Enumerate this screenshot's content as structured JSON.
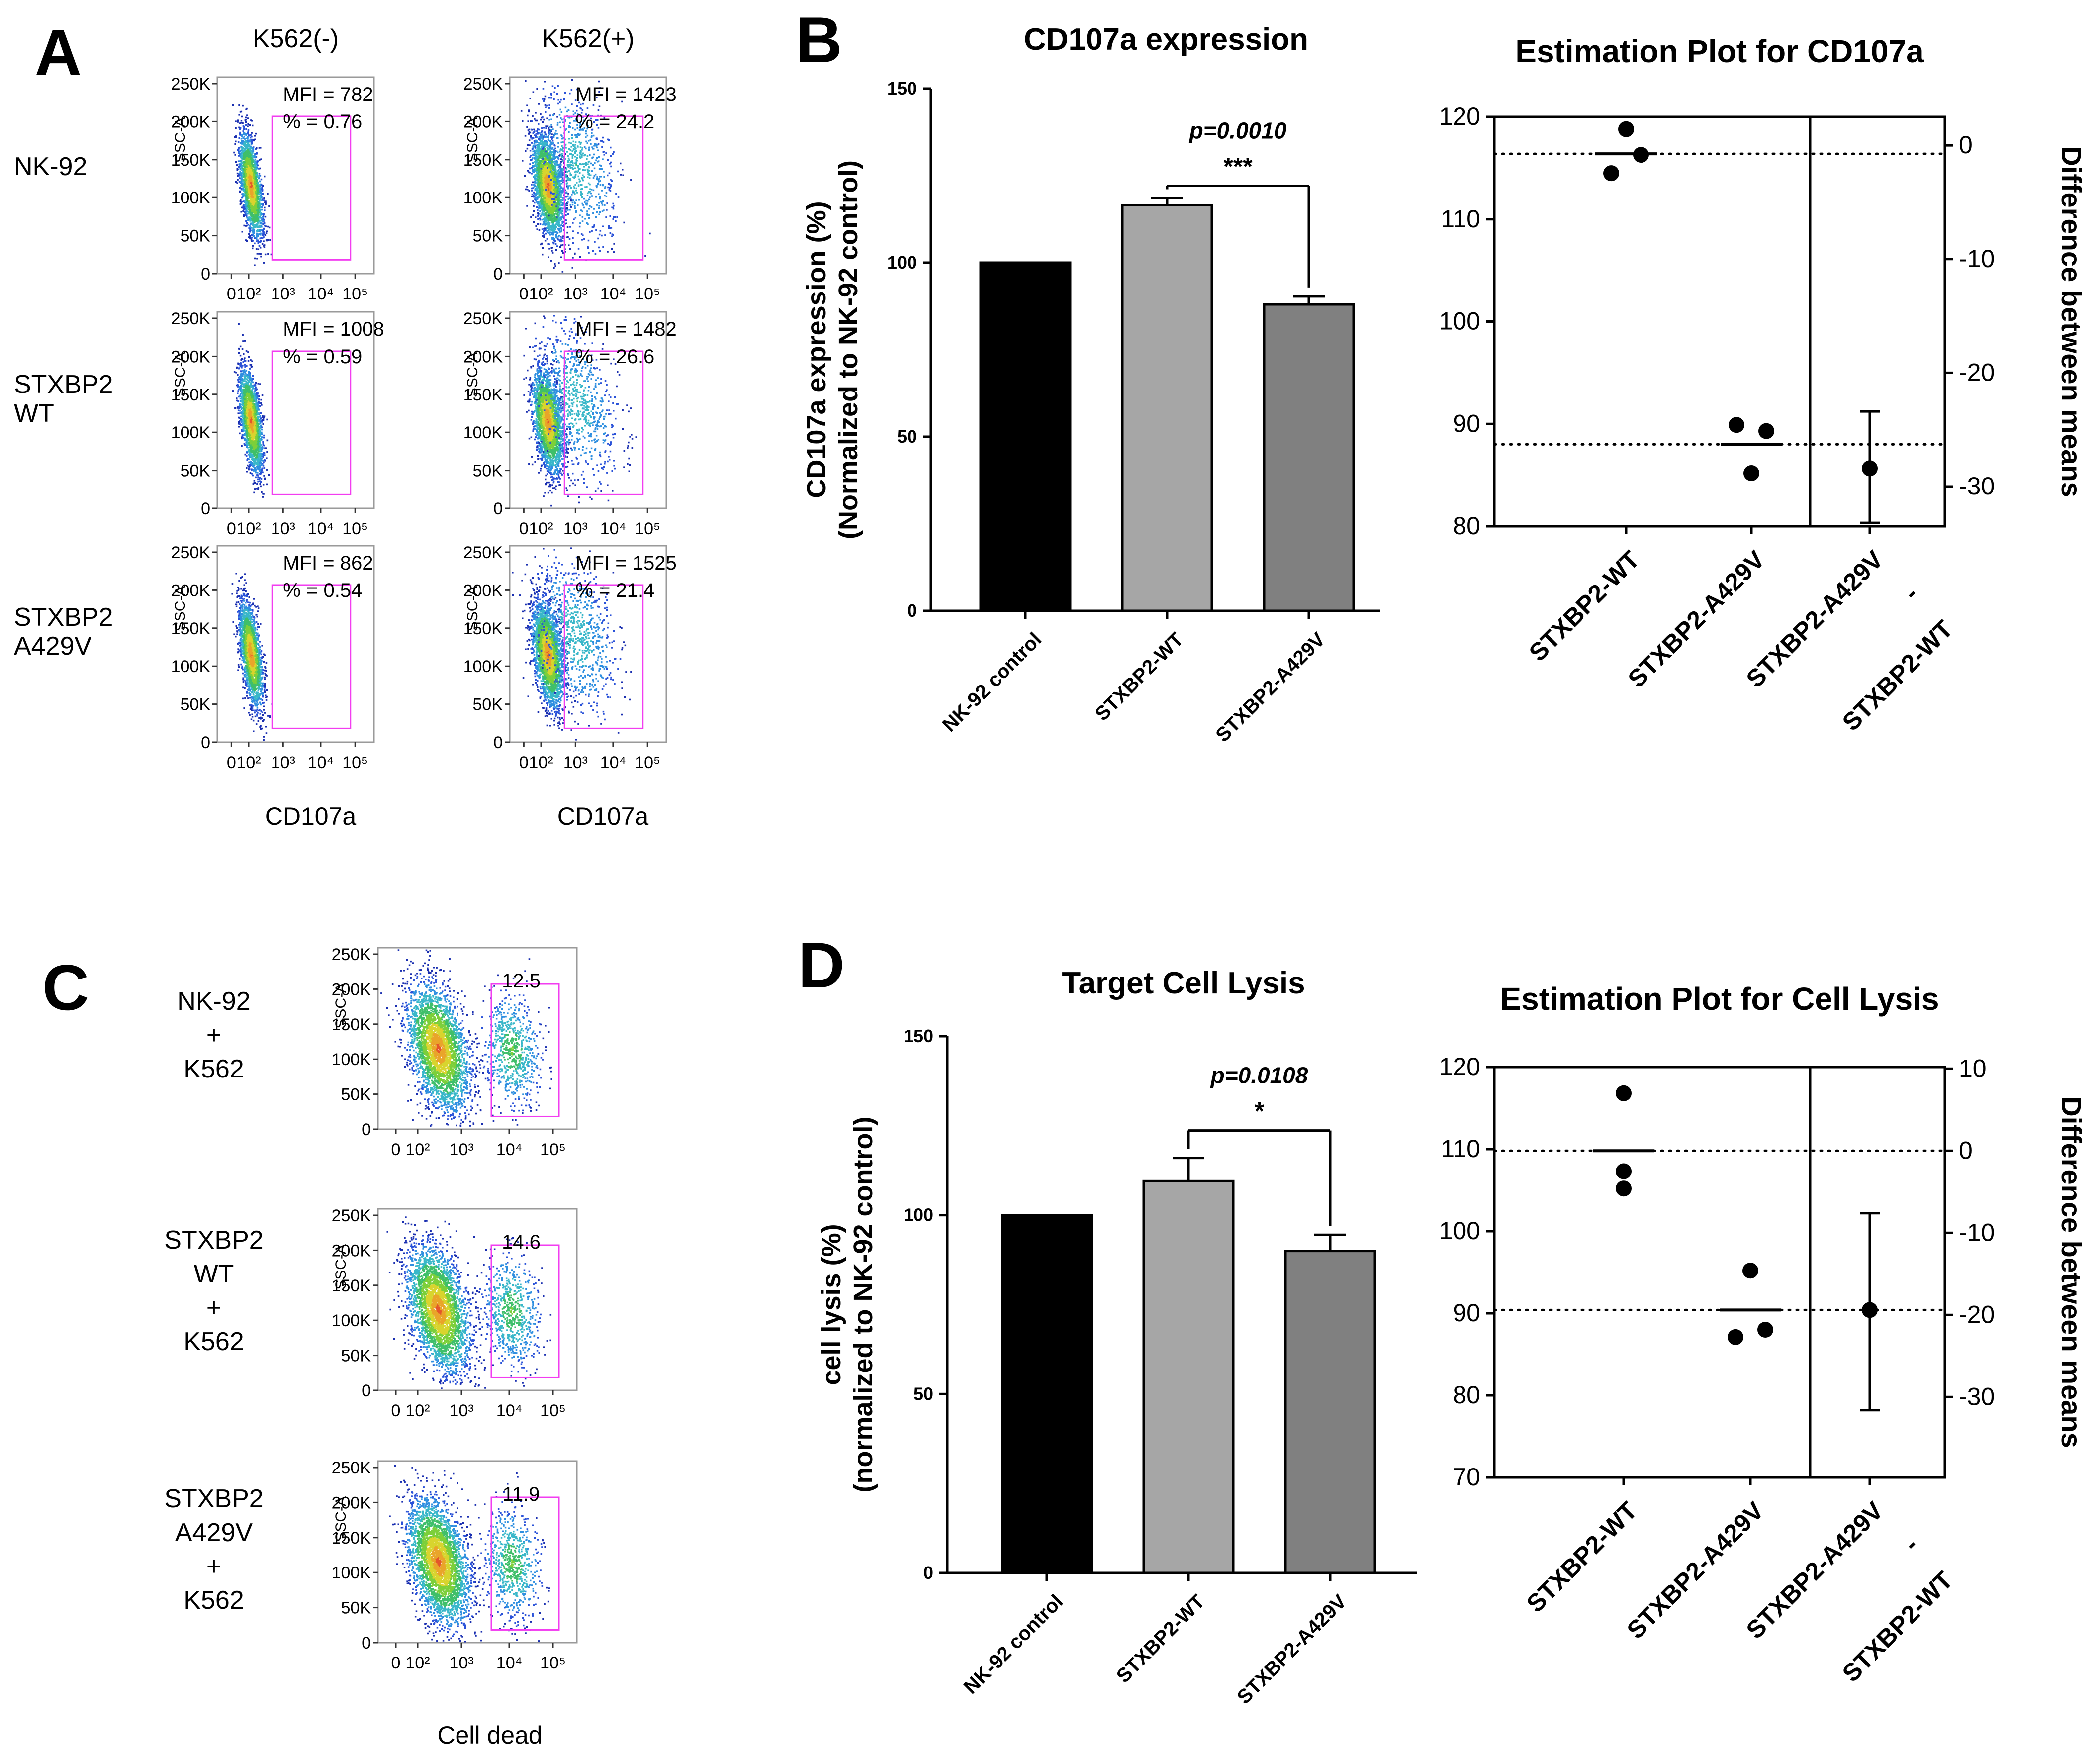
{
  "panels": {
    "A": "A",
    "B": "B",
    "C": "C",
    "D": "D"
  },
  "flow_A": {
    "columns": [
      "K562(-)",
      "K562(+)"
    ],
    "rows": [
      "NK-92",
      "STXBP2\nWT",
      "STXBP2\nA429V"
    ],
    "y_axis_label": "SSC-A",
    "y_ticks": [
      "250K",
      "200K",
      "150K",
      "100K",
      "50K",
      "0"
    ],
    "x_ticks": [
      "0",
      "10²",
      "10³",
      "10⁴",
      "10⁵"
    ],
    "x_axis_label": "CD107a",
    "cells": [
      {
        "mfi": "MFI = 782",
        "pct": "% = 0.76"
      },
      {
        "mfi": "MFI = 1423",
        "pct": "% = 24.2"
      },
      {
        "mfi": "MFI = 1008",
        "pct": "% = 0.59"
      },
      {
        "mfi": "MFI = 1482",
        "pct": "% = 26.6"
      },
      {
        "mfi": "MFI = 862",
        "pct": "% = 0.54"
      },
      {
        "mfi": "MFI = 1525",
        "pct": "% = 21.4"
      }
    ]
  },
  "flow_C": {
    "rows": [
      "NK-92\n+\nK562",
      "STXBP2\nWT\n+\nK562",
      "STXBP2\nA429V\n+\nK562"
    ],
    "y_axis_label": "SSC-A",
    "y_ticks": [
      "250K",
      "200K",
      "150K",
      "100K",
      "50K",
      "0"
    ],
    "x_ticks": [
      "0",
      "10²",
      "10³",
      "10⁴",
      "10⁵"
    ],
    "x_axis_label": "Cell dead",
    "gates": [
      "12.5",
      "14.6",
      "11.9"
    ]
  },
  "chart_data": [
    {
      "id": "B_bar",
      "type": "bar",
      "title": "CD107a expression",
      "ylabel": "CD107a expression (%)\n(Normalized to NK-92 control)",
      "ylim": [
        0,
        150
      ],
      "yticks": [
        0,
        50,
        100,
        150
      ],
      "categories": [
        "NK-92 control",
        "STXBP2-WT",
        "STXBP2-A429V"
      ],
      "values": [
        100,
        116.5,
        88
      ],
      "errors": [
        0,
        2,
        2.3
      ],
      "colors": [
        "#000000",
        "#a6a6a6",
        "#808080"
      ],
      "significance": {
        "p_label": "p=0.0010",
        "stars": "***",
        "between": [
          1,
          2
        ]
      }
    },
    {
      "id": "B_est",
      "type": "scatter",
      "title": "Estimation Plot for CD107a",
      "ylim": [
        80,
        120
      ],
      "yticks": [
        80,
        90,
        100,
        110,
        120
      ],
      "right_ylabel": "Difference between means",
      "right_ylim": [
        -33.5,
        2.5
      ],
      "right_yticks": [
        0,
        -10,
        -20,
        -30
      ],
      "categories": [
        "STXBP2-WT",
        "STXBP2-A429V",
        "STXBP2-A429V\n-\nSTXBP2-WT"
      ],
      "groups": [
        {
          "mean": 116.4,
          "points": [
            [
              -0.3,
              114.5
            ],
            [
              0,
              118.8
            ],
            [
              0.3,
              116.3
            ]
          ]
        },
        {
          "mean": 88.0,
          "points": [
            [
              -0.3,
              89.9
            ],
            [
              0,
              85.2
            ],
            [
              0.3,
              89.3
            ]
          ]
        }
      ],
      "difference": {
        "mean": -28.4,
        "ci": [
          -33.2,
          -23.4
        ]
      }
    },
    {
      "id": "D_bar",
      "type": "bar",
      "title": "Target Cell Lysis",
      "ylabel": "cell lysis (%)\n(normalized to NK-92 control)",
      "ylim": [
        0,
        150
      ],
      "yticks": [
        0,
        50,
        100,
        150
      ],
      "categories": [
        "NK-92 control",
        "STXBP2-WT",
        "STXBP2-A429V"
      ],
      "values": [
        100,
        109.5,
        90
      ],
      "errors": [
        0,
        6.5,
        4.5
      ],
      "colors": [
        "#000000",
        "#a6a6a6",
        "#808080"
      ],
      "significance": {
        "p_label": "p=0.0108",
        "stars": "*",
        "between": [
          1,
          2
        ]
      }
    },
    {
      "id": "D_est",
      "type": "scatter",
      "title": "Estimation Plot for Cell Lysis",
      "ylim": [
        70,
        120
      ],
      "yticks": [
        70,
        80,
        90,
        100,
        110,
        120
      ],
      "right_ylabel": "Difference between means",
      "right_ylim": [
        -39.8,
        10.2
      ],
      "right_yticks": [
        10,
        0,
        -10,
        -20,
        -30
      ],
      "categories": [
        "STXBP2-WT",
        "STXBP2-A429V",
        "STXBP2-A429V\n-\nSTXBP2-WT"
      ],
      "groups": [
        {
          "mean": 109.8,
          "points": [
            [
              0,
              116.8
            ],
            [
              0,
              107.3
            ],
            [
              0,
              105.2
            ]
          ]
        },
        {
          "mean": 90.4,
          "points": [
            [
              0,
              95.2
            ],
            [
              -0.3,
              87.1
            ],
            [
              0.3,
              88.0
            ]
          ]
        }
      ],
      "difference": {
        "mean": -19.4,
        "ci": [
          -31.6,
          -7.6
        ]
      }
    }
  ]
}
